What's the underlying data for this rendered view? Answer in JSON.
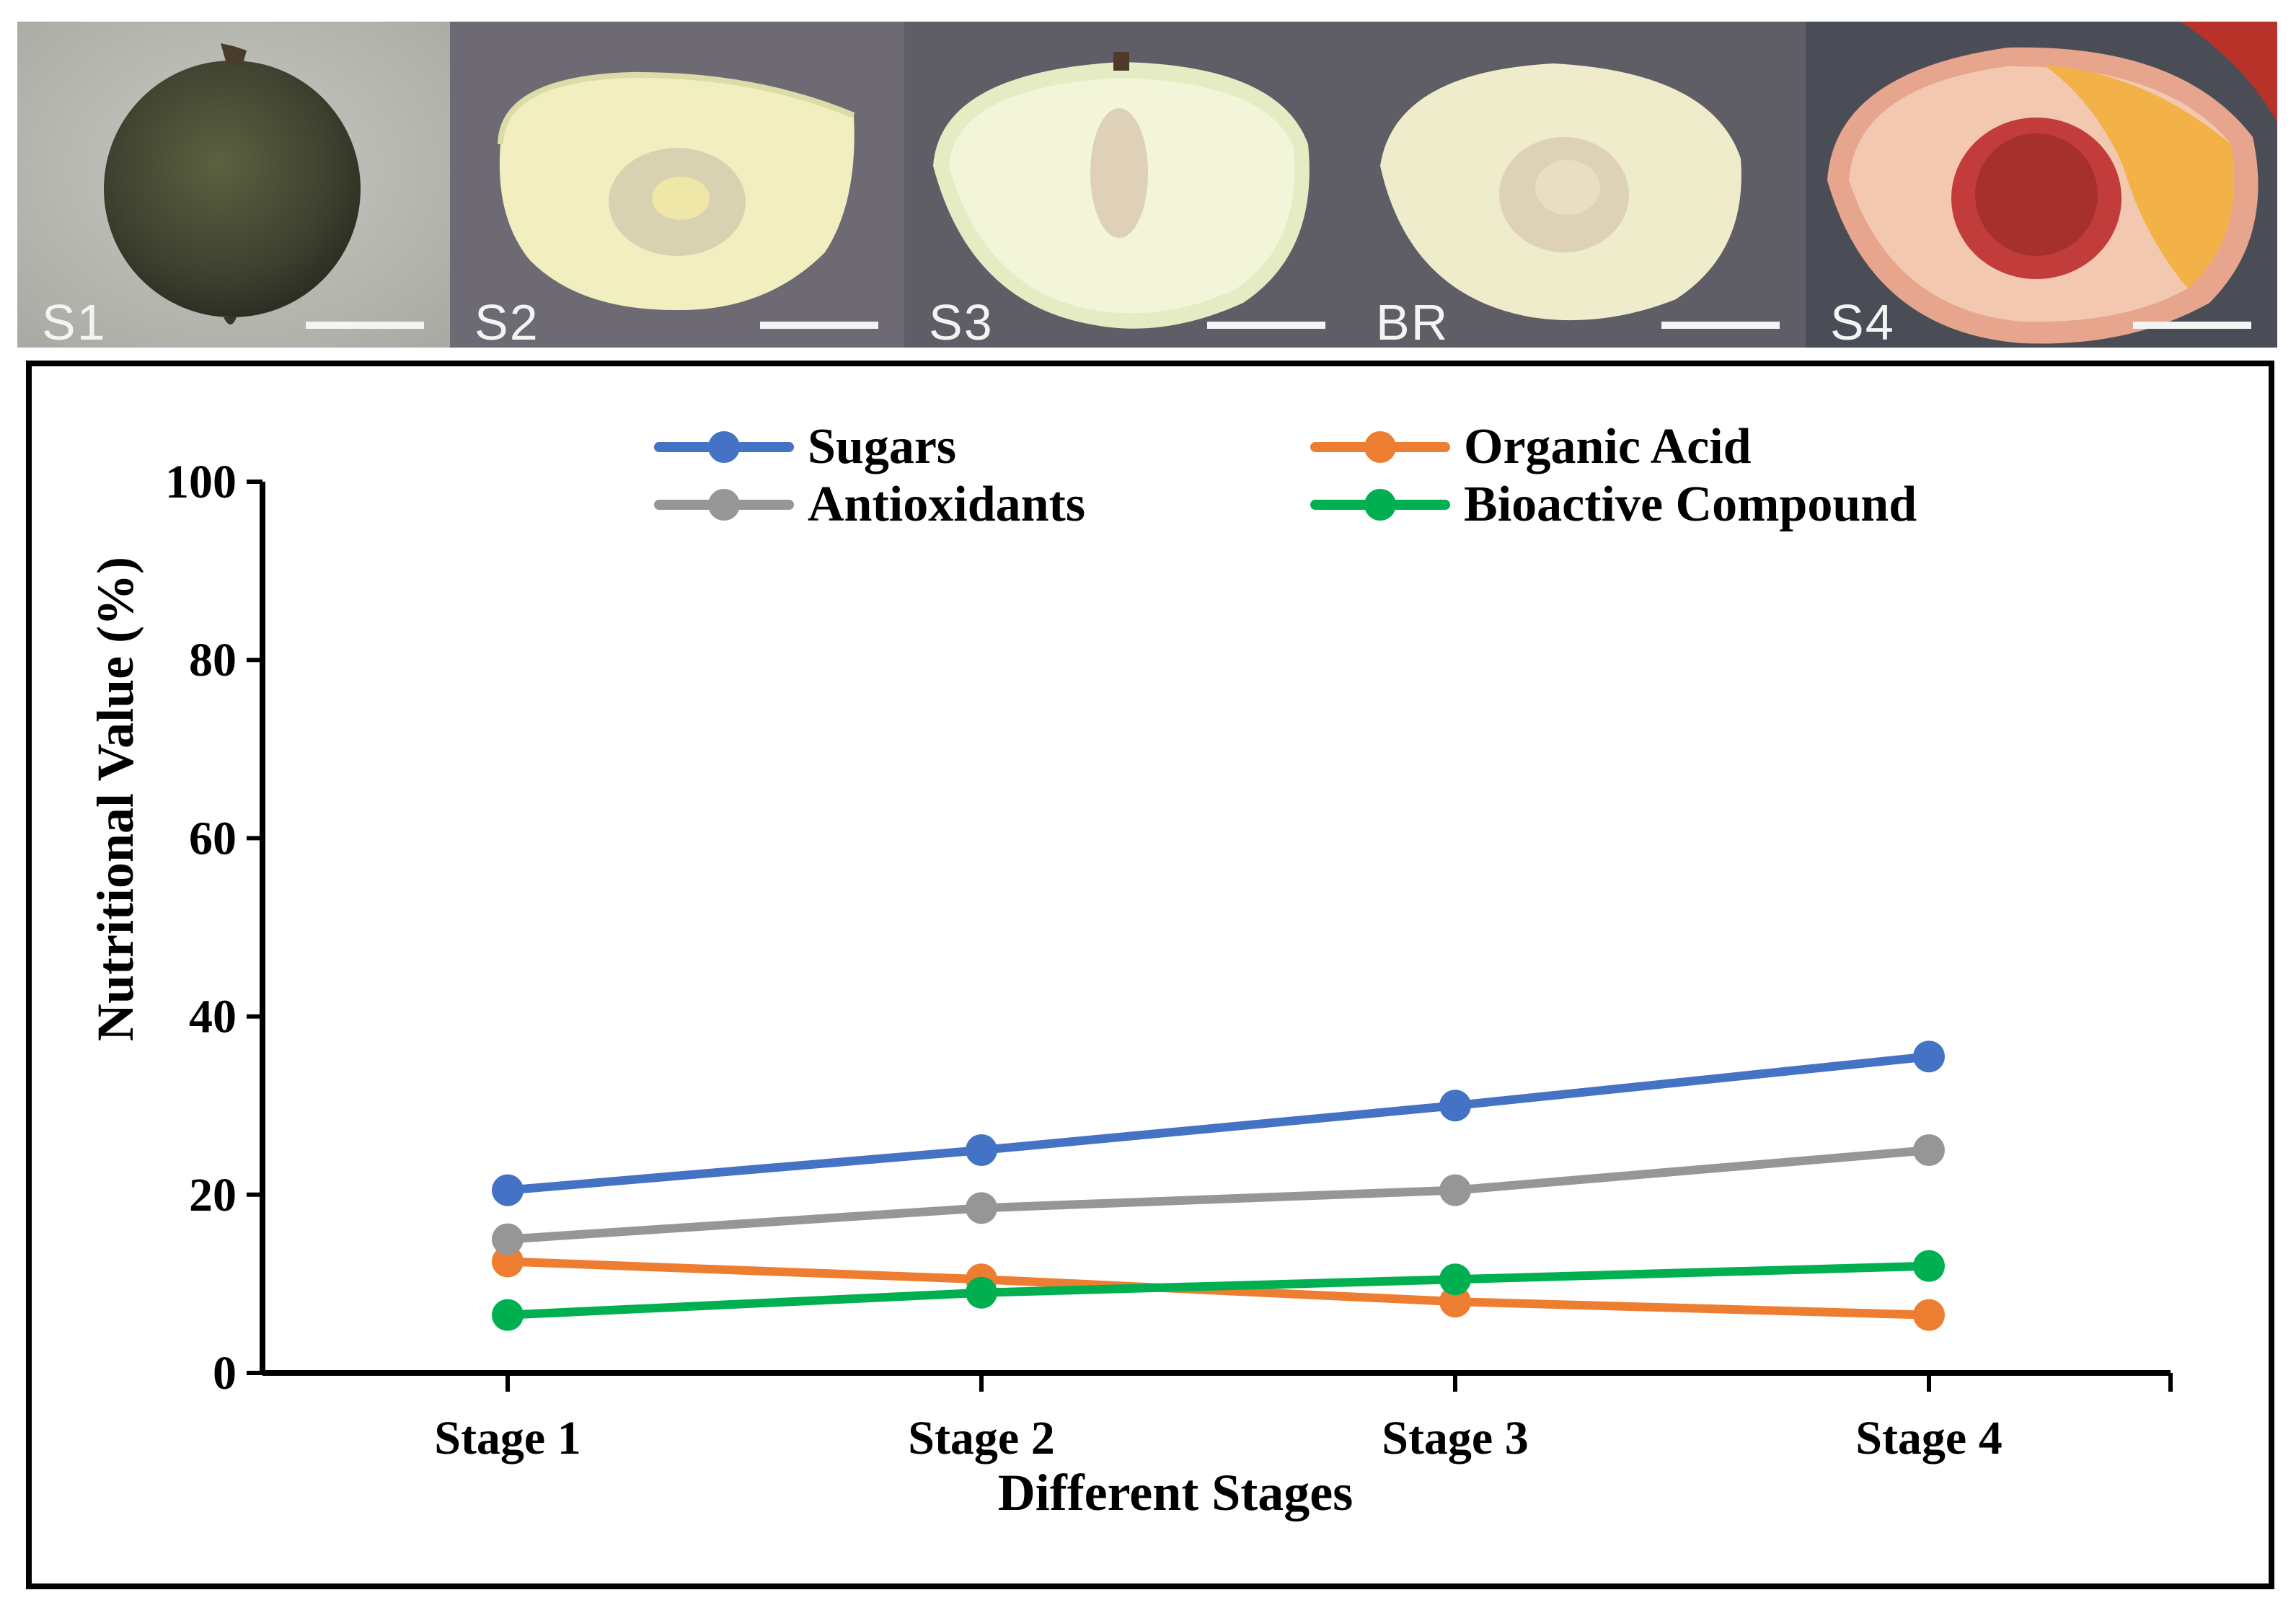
{
  "panels": [
    {
      "label": "S1",
      "background": "#b9bab5",
      "fruit": "whole"
    },
    {
      "label": "S2",
      "background": "#6d6a74",
      "fruit": "halved-green"
    },
    {
      "label": "S3",
      "background": "#5f5d65",
      "fruit": "halved-green"
    },
    {
      "label": "BR",
      "background": "#5f5d65",
      "fruit": "halved-green"
    },
    {
      "label": "S4",
      "background": "#4a4d56",
      "fruit": "halved-ripe"
    }
  ],
  "chart_data": {
    "type": "line",
    "xlabel": "Different Stages",
    "ylabel": "Nutritional Value (%)",
    "categories": [
      "Stage 1",
      "Stage 2",
      "Stage 3",
      "Stage 4"
    ],
    "ylim": [
      0,
      100
    ],
    "yticks": [
      0,
      20,
      40,
      60,
      80,
      100
    ],
    "grid": false,
    "legend_position": "top",
    "series": [
      {
        "name": "Sugars",
        "color": "#4472c4",
        "values": [
          20.5,
          25.0,
          30.0,
          35.5
        ]
      },
      {
        "name": "Organic Acid",
        "color": "#ed7d31",
        "values": [
          12.5,
          10.5,
          8.0,
          6.5
        ]
      },
      {
        "name": "Antioxidants",
        "color": "#969696",
        "values": [
          15.0,
          18.5,
          20.5,
          25.0
        ]
      },
      {
        "name": "Bioactive Compound",
        "color": "#00b050",
        "values": [
          6.5,
          9.0,
          10.5,
          12.0
        ]
      }
    ]
  }
}
